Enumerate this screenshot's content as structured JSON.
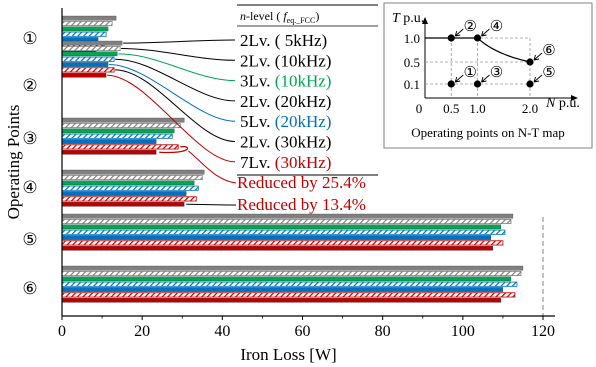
{
  "chart_data": {
    "type": "bar",
    "orientation": "horizontal",
    "xlabel": "Iron Loss [W]",
    "ylabel": "Operating Points",
    "xlim": [
      0,
      120
    ],
    "xticks": [
      0,
      20,
      40,
      60,
      80,
      100,
      120
    ],
    "reference_line_x": 120,
    "categories": [
      "①",
      "②",
      "③",
      "④",
      "⑤",
      "⑥"
    ],
    "legend_header": {
      "prefix": "n-level",
      "var": "f",
      "sub": "eq._FCC"
    },
    "series": [
      {
        "name": "2Lv. ( 5kHz)",
        "color": "#808080",
        "hatch": false,
        "values": [
          13.5,
          15.0,
          30.5,
          35.5,
          112.5,
          115.0
        ]
      },
      {
        "name": "2Lv. (10kHz)",
        "color": "#808080",
        "hatch": true,
        "values": [
          12.5,
          14.5,
          29.5,
          35.0,
          112.0,
          114.5
        ]
      },
      {
        "name": "3Lv. (10kHz)",
        "color": "#00a651",
        "hatch": false,
        "values": [
          11.5,
          13.8,
          28.0,
          33.0,
          109.5,
          112.0
        ]
      },
      {
        "name": "2Lv. (20kHz)",
        "color": "#0070c0",
        "hatch": true,
        "values": [
          11.0,
          13.0,
          27.5,
          34.0,
          110.5,
          113.5
        ]
      },
      {
        "name": "5Lv. (20kHz)",
        "color": "#0070c0",
        "hatch": false,
        "values": [
          9.0,
          11.5,
          23.5,
          31.0,
          107.0,
          110.0
        ]
      },
      {
        "name": "2Lv. (30kHz)",
        "color": "#c00000",
        "hatch": true,
        "values": [
          10.5,
          13.0,
          29.0,
          33.5,
          110.0,
          113.0
        ]
      },
      {
        "name": "7Lv. (30kHz)",
        "color": "#c00000",
        "hatch": false,
        "values": [
          8.5,
          11.0,
          23.5,
          30.5,
          107.5,
          109.5
        ]
      }
    ],
    "annotations": [
      {
        "text": "Reduced by 25.4%",
        "color": "#c00000"
      },
      {
        "text": "Reduced by 13.4%",
        "color": "#c00000"
      }
    ]
  },
  "inset": {
    "y_var": "T",
    "y_unit": "p.u.",
    "x_var": "N",
    "x_unit": "p.u.",
    "yticks": [
      "1.0",
      "0.5",
      "0.1"
    ],
    "xticks": [
      "0",
      "0.5",
      "1.0",
      "2.0"
    ],
    "caption": "Operating points on N-T map",
    "points": [
      {
        "label": "①",
        "n": 0.5,
        "t": 0.1
      },
      {
        "label": "②",
        "n": 0.5,
        "t": 1.0
      },
      {
        "label": "③",
        "n": 1.0,
        "t": 0.1
      },
      {
        "label": "④",
        "n": 1.0,
        "t": 1.0
      },
      {
        "label": "⑤",
        "n": 2.0,
        "t": 0.1
      },
      {
        "label": "⑥",
        "n": 2.0,
        "t": 0.5
      }
    ]
  }
}
